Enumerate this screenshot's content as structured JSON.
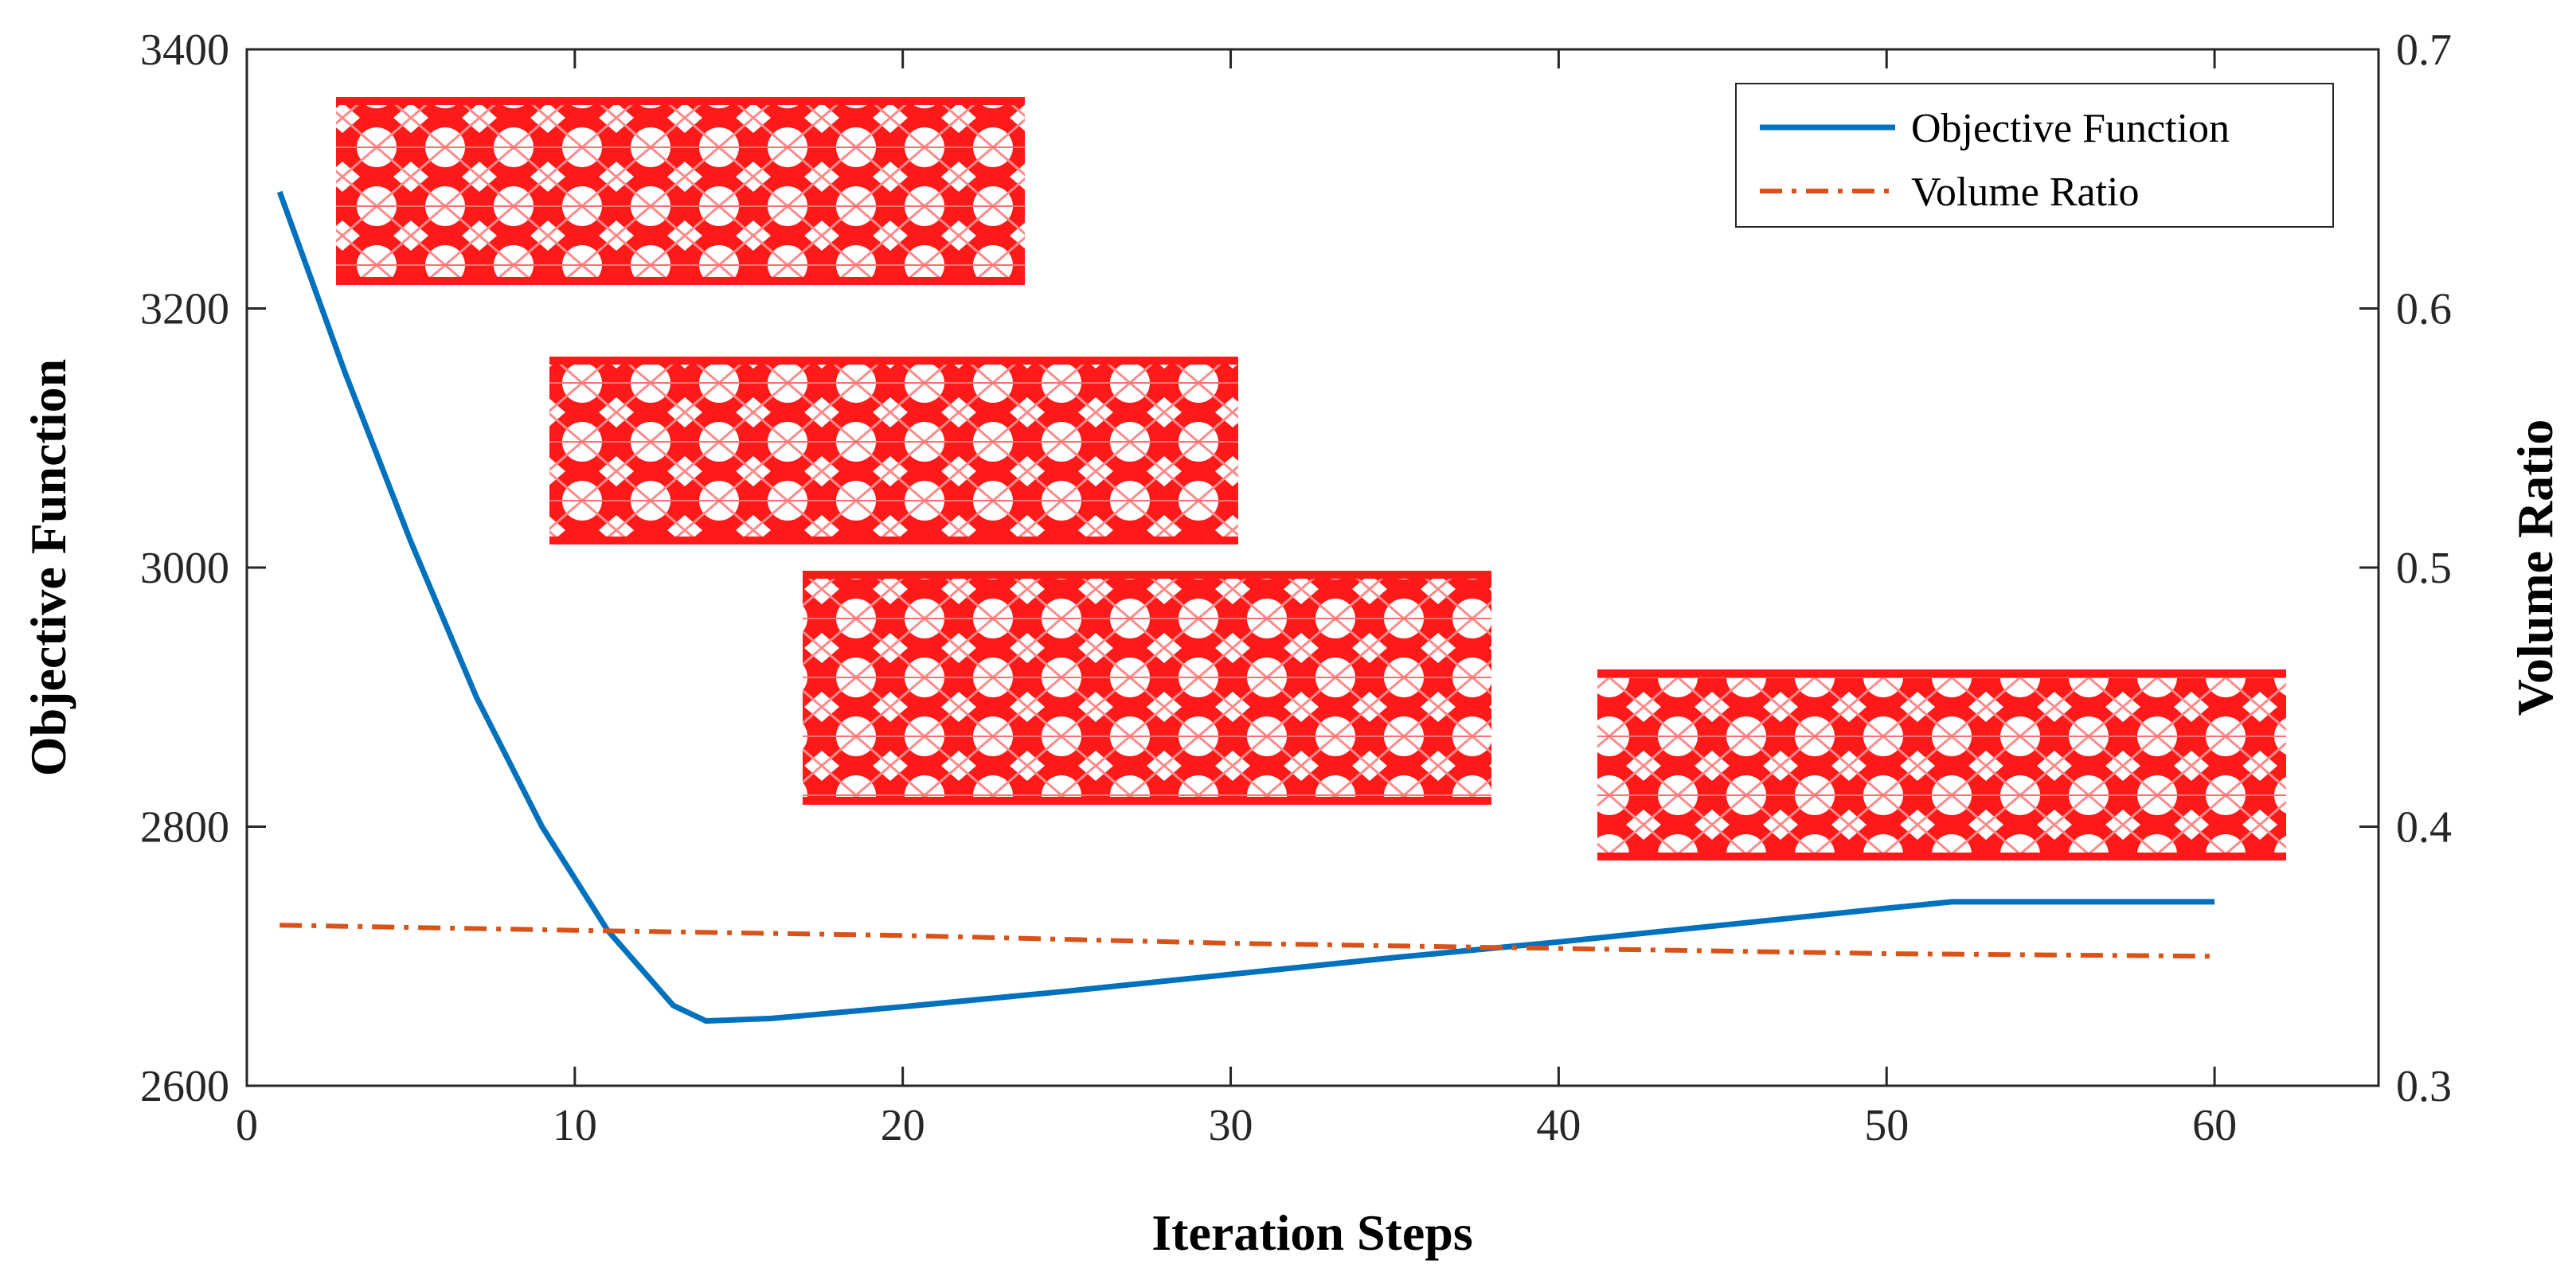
{
  "chart_data": {
    "type": "line",
    "title": "",
    "xlabel": "Iteration Steps",
    "ylabel_left": "Objective Function",
    "ylabel_right": "Volume Ratio",
    "xlim": [
      0,
      65
    ],
    "ylim_left": [
      2600,
      3400
    ],
    "ylim_right": [
      0.3,
      0.7
    ],
    "xticks": [
      0,
      10,
      20,
      30,
      40,
      50,
      60
    ],
    "yticks_left": [
      2600,
      2800,
      3000,
      3200,
      3400
    ],
    "yticks_right": [
      "0.3",
      "0.4",
      "0.5",
      "0.6",
      "0.7"
    ],
    "grid": false,
    "legend_position": "top-right",
    "series": [
      {
        "name": "Objective Function",
        "axis": "left",
        "style": "solid",
        "color": "#0072BD",
        "x": [
          1,
          3,
          5,
          7,
          9,
          11,
          13,
          14,
          16,
          20,
          25,
          30,
          35,
          40,
          45,
          50,
          52,
          56,
          60
        ],
        "y": [
          3290,
          3150,
          3020,
          2900,
          2800,
          2720,
          2662,
          2650,
          2652,
          2661,
          2673,
          2686,
          2699,
          2711,
          2724,
          2737,
          2742,
          2742,
          2742
        ]
      },
      {
        "name": "Volume Ratio",
        "axis": "right",
        "style": "dash-dot",
        "color": "#D95319",
        "x": [
          1,
          10,
          20,
          30,
          40,
          50,
          60
        ],
        "y": [
          0.362,
          0.36,
          0.358,
          0.355,
          0.353,
          0.351,
          0.35
        ]
      }
    ],
    "insets": [
      {
        "name": "topology-inset-1",
        "color": "#FF1A1A"
      },
      {
        "name": "topology-inset-2",
        "color": "#FF1A1A"
      },
      {
        "name": "topology-inset-3",
        "color": "#FF1A1A"
      },
      {
        "name": "topology-inset-4",
        "color": "#FF1A1A"
      }
    ]
  }
}
